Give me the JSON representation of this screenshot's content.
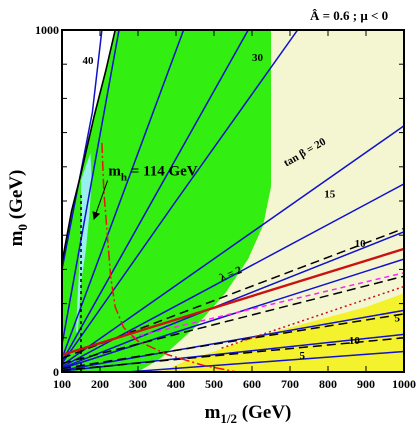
{
  "chart_data": {
    "type": "line",
    "title": "Â = 0.6 ; μ < 0",
    "xlabel_main": "m",
    "xlabel_sub": "1/2",
    "xlabel_unit": " (GeV)",
    "ylabel_main": "m",
    "ylabel_sub": "0",
    "ylabel_unit": " (GeV)",
    "xlim": [
      100,
      1000
    ],
    "ylim": [
      0,
      1000
    ],
    "x_ticks": [
      100,
      200,
      300,
      400,
      500,
      600,
      700,
      800,
      900,
      1000
    ],
    "y_tick_labels": [
      {
        "value": 0,
        "label": "0"
      },
      {
        "value": 1000,
        "label": "1000"
      }
    ],
    "colors": {
      "green_band": "#33ee11",
      "cream_region": "#f4f6d2",
      "yellow_region": "#f3f22c",
      "bright_green_strip": "#22ff00",
      "cyan_strip": "#99eeee",
      "tan_beta_lines": "#1111cc",
      "lambda_lines": "#000000",
      "red_line": "#cc1111",
      "magenta_line": "#ff22ff",
      "mh_curve": "#ee1111"
    },
    "regions": [
      {
        "name": "green band",
        "kind": "region",
        "color_key": "green_band",
        "polygon": [
          [
            200,
            1000
          ],
          [
            650,
            1000
          ],
          [
            650,
            540
          ],
          [
            630,
            430
          ],
          [
            590,
            330
          ],
          [
            530,
            230
          ],
          [
            450,
            130
          ],
          [
            360,
            40
          ],
          [
            300,
            0
          ],
          [
            100,
            0
          ],
          [
            100,
            300
          ],
          [
            150,
            600
          ]
        ]
      },
      {
        "name": "cream region",
        "kind": "region",
        "color_key": "cream_region",
        "polygon": [
          [
            650,
            1000
          ],
          [
            1000,
            1000
          ],
          [
            1000,
            230
          ],
          [
            900,
            190
          ],
          [
            800,
            160
          ],
          [
            700,
            130
          ],
          [
            600,
            100
          ],
          [
            500,
            60
          ],
          [
            420,
            30
          ],
          [
            360,
            0
          ],
          [
            300,
            0
          ],
          [
            360,
            40
          ],
          [
            450,
            130
          ],
          [
            530,
            230
          ],
          [
            590,
            330
          ],
          [
            630,
            430
          ],
          [
            650,
            540
          ]
        ]
      },
      {
        "name": "yellow region",
        "kind": "region",
        "color_key": "yellow_region",
        "polygon": [
          [
            1000,
            230
          ],
          [
            900,
            190
          ],
          [
            800,
            160
          ],
          [
            700,
            130
          ],
          [
            600,
            100
          ],
          [
            500,
            60
          ],
          [
            420,
            30
          ],
          [
            360,
            0
          ],
          [
            1000,
            0
          ]
        ]
      },
      {
        "name": "bright green strip",
        "kind": "region",
        "color_key": "bright_green_strip",
        "polygon": [
          [
            100,
            320
          ],
          [
            125,
            470
          ],
          [
            150,
            580
          ],
          [
            185,
            750
          ],
          [
            215,
            880
          ],
          [
            240,
            1000
          ],
          [
            200,
            1000
          ],
          [
            150,
            600
          ],
          [
            100,
            300
          ]
        ]
      },
      {
        "name": "cyan strip",
        "kind": "region",
        "color_key": "cyan_strip",
        "polygon": [
          [
            150,
            560
          ],
          [
            165,
            610
          ],
          [
            175,
            640
          ],
          [
            178,
            560
          ],
          [
            172,
            460
          ],
          [
            162,
            350
          ],
          [
            150,
            260
          ],
          [
            145,
            170
          ],
          [
            141,
            110
          ],
          [
            137,
            120
          ],
          [
            140,
            200
          ],
          [
            146,
            320
          ],
          [
            150,
            440
          ]
        ]
      },
      {
        "name": "excluded corner",
        "kind": "region",
        "color_key": "white",
        "polygon": [
          [
            100,
            1000
          ],
          [
            100,
            320
          ],
          [
            125,
            470
          ],
          [
            150,
            580
          ],
          [
            185,
            750
          ],
          [
            215,
            880
          ],
          [
            240,
            1000
          ]
        ]
      }
    ],
    "series": [
      {
        "label": "40",
        "kind": "tan-beta",
        "color_key": "tan_beta_lines",
        "points": [
          [
            100,
            300
          ],
          [
            180,
            760
          ],
          [
            205,
            1000
          ]
        ],
        "label_at": [
          154,
          900
        ]
      },
      {
        "label": "",
        "kind": "tan-beta",
        "color_key": "tan_beta_lines",
        "points": [
          [
            100,
            80
          ],
          [
            250,
            1000
          ]
        ]
      },
      {
        "label": "",
        "kind": "tan-beta",
        "color_key": "tan_beta_lines",
        "points": [
          [
            100,
            40
          ],
          [
            420,
            1000
          ]
        ]
      },
      {
        "label": "",
        "kind": "tan-beta",
        "color_key": "tan_beta_lines",
        "points": [
          [
            100,
            30
          ],
          [
            590,
            1000
          ]
        ]
      },
      {
        "label": "30",
        "kind": "tan-beta",
        "color_key": "tan_beta_lines",
        "points": [
          [
            100,
            25
          ],
          [
            400,
            500
          ],
          [
            720,
            1000
          ]
        ],
        "label_at": [
          600,
          910
        ]
      },
      {
        "label": "tan β = 20",
        "kind": "tan-beta",
        "color_key": "tan_beta_lines",
        "points": [
          [
            100,
            20
          ],
          [
            1000,
            720
          ]
        ],
        "label_at": [
          690,
          600
        ],
        "label_angle": -30
      },
      {
        "label": "15",
        "kind": "tan-beta",
        "color_key": "tan_beta_lines",
        "points": [
          [
            100,
            15
          ],
          [
            1000,
            550
          ]
        ],
        "label_at": [
          790,
          510
        ]
      },
      {
        "label": "10",
        "kind": "tan-beta",
        "color_key": "tan_beta_lines",
        "points": [
          [
            100,
            12
          ],
          [
            1000,
            410
          ]
        ],
        "label_at": [
          870,
          365
        ]
      },
      {
        "label": "",
        "kind": "tan-beta",
        "color_key": "tan_beta_lines",
        "points": [
          [
            100,
            10
          ],
          [
            1000,
            330
          ]
        ]
      },
      {
        "label": "",
        "kind": "tan-beta",
        "color_key": "tan_beta_lines",
        "points": [
          [
            100,
            5
          ],
          [
            1000,
            180
          ]
        ]
      },
      {
        "label": "",
        "kind": "tan-beta",
        "color_key": "tan_beta_lines",
        "points": [
          [
            100,
            3
          ],
          [
            1000,
            110
          ]
        ]
      },
      {
        "label": "5",
        "kind": "tan-beta",
        "color_key": "tan_beta_lines",
        "points": [
          [
            270,
            0
          ],
          [
            1000,
            60
          ]
        ],
        "label_at": [
          725,
          38
        ]
      },
      {
        "label": "λ = 2",
        "kind": "lambda",
        "color_key": "lambda_lines",
        "dash": "9,5",
        "points": [
          [
            100,
            40
          ],
          [
            1000,
            420
          ]
        ],
        "label_at": [
          520,
          265
        ],
        "label_angle": -23
      },
      {
        "label": "",
        "kind": "lambda",
        "color_key": "lambda_lines",
        "dash": "9,5",
        "points": [
          [
            100,
            25
          ],
          [
            1000,
            280
          ]
        ]
      },
      {
        "label": "5",
        "kind": "lambda",
        "color_key": "lambda_lines",
        "dash": "9,5",
        "points": [
          [
            100,
            10
          ],
          [
            1000,
            170
          ]
        ],
        "label_at": [
          975,
          148
        ]
      },
      {
        "label": "10",
        "kind": "lambda",
        "color_key": "lambda_lines",
        "dash": "9,5",
        "points": [
          [
            100,
            5
          ],
          [
            1000,
            100
          ]
        ],
        "label_at": [
          855,
          82
        ]
      },
      {
        "label": "",
        "kind": "red-line",
        "color_key": "red_line",
        "width": 2.4,
        "points": [
          [
            100,
            50
          ],
          [
            1000,
            360
          ]
        ]
      },
      {
        "label": "",
        "kind": "dotted",
        "color_key": "red_line",
        "dash": "2,3",
        "points": [
          [
            520,
            70
          ],
          [
            1000,
            250
          ]
        ]
      },
      {
        "label": "",
        "kind": "magenta",
        "color_key": "magenta_line",
        "dash": "5,4",
        "points": [
          [
            280,
            100
          ],
          [
            1000,
            290
          ]
        ]
      },
      {
        "label": "m_h = 114 GeV",
        "kind": "higgs",
        "color_key": "mh_curve",
        "dash": "10,3,2,3",
        "points": [
          [
            205,
            670
          ],
          [
            210,
            530
          ],
          [
            218,
            420
          ],
          [
            228,
            280
          ],
          [
            240,
            190
          ],
          [
            262,
            130
          ],
          [
            300,
            90
          ],
          [
            380,
            50
          ],
          [
            470,
            20
          ],
          [
            560,
            0
          ]
        ],
        "label_at": [
          222,
          575
        ]
      },
      {
        "label": "",
        "kind": "chargino",
        "color_key": "lambda_lines",
        "dash": "3,3",
        "points": [
          [
            150,
            0
          ],
          [
            150,
            520
          ]
        ]
      }
    ],
    "annotation_arrow": {
      "from": [
        220,
        560
      ],
      "to": [
        185,
        450
      ]
    }
  }
}
